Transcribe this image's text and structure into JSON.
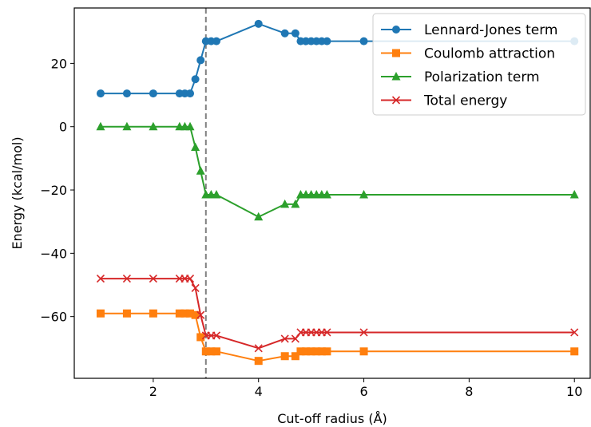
{
  "chart_data": {
    "type": "line",
    "title": "",
    "xlabel": "Cut-off radius (Å)",
    "ylabel": "Energy (kcal/mol)",
    "xlim": [
      0.5,
      10.3
    ],
    "ylim": [
      -79.5,
      37.5
    ],
    "xticks": [
      2,
      4,
      6,
      8,
      10
    ],
    "yticks": [
      -60,
      -40,
      -20,
      0,
      20
    ],
    "grid": false,
    "legend_position": "top-right",
    "reference_line": {
      "x": 3.0,
      "style": "dashed",
      "color": "#808080"
    },
    "x": [
      1.0,
      1.5,
      2.0,
      2.5,
      2.6,
      2.7,
      2.8,
      2.9,
      3.0,
      3.1,
      3.2,
      4.0,
      4.5,
      4.7,
      4.8,
      4.9,
      5.0,
      5.1,
      5.2,
      5.3,
      6.0,
      10.0
    ],
    "series": [
      {
        "name": "Lennard-Jones term",
        "color": "#1f77b4",
        "marker": "circle",
        "values": [
          10.5,
          10.5,
          10.5,
          10.5,
          10.5,
          10.5,
          15.0,
          21.0,
          27.0,
          27.0,
          27.0,
          32.5,
          29.5,
          29.5,
          27.0,
          27.0,
          27.0,
          27.0,
          27.0,
          27.0,
          27.0,
          27.0
        ]
      },
      {
        "name": "Coulomb attraction",
        "color": "#ff7f0e",
        "marker": "square",
        "values": [
          -59.0,
          -59.0,
          -59.0,
          -59.0,
          -59.0,
          -59.0,
          -59.5,
          -66.5,
          -71.0,
          -71.0,
          -71.0,
          -74.0,
          -72.5,
          -72.5,
          -71.0,
          -71.0,
          -71.0,
          -71.0,
          -71.0,
          -71.0,
          -71.0,
          -71.0
        ]
      },
      {
        "name": "Polarization term",
        "color": "#2ca02c",
        "marker": "triangle",
        "values": [
          0.0,
          0.0,
          0.0,
          0.0,
          0.0,
          0.0,
          -6.5,
          -14.0,
          -21.5,
          -21.5,
          -21.5,
          -28.5,
          -24.5,
          -24.5,
          -21.5,
          -21.5,
          -21.5,
          -21.5,
          -21.5,
          -21.5,
          -21.5,
          -21.5
        ]
      },
      {
        "name": "Total energy",
        "color": "#d62728",
        "marker": "x",
        "values": [
          -48.0,
          -48.0,
          -48.0,
          -48.0,
          -48.0,
          -48.0,
          -51.0,
          -59.5,
          -66.0,
          -66.0,
          -66.0,
          -70.0,
          -67.0,
          -67.0,
          -65.0,
          -65.0,
          -65.0,
          -65.0,
          -65.0,
          -65.0,
          -65.0,
          -65.0
        ]
      }
    ]
  }
}
